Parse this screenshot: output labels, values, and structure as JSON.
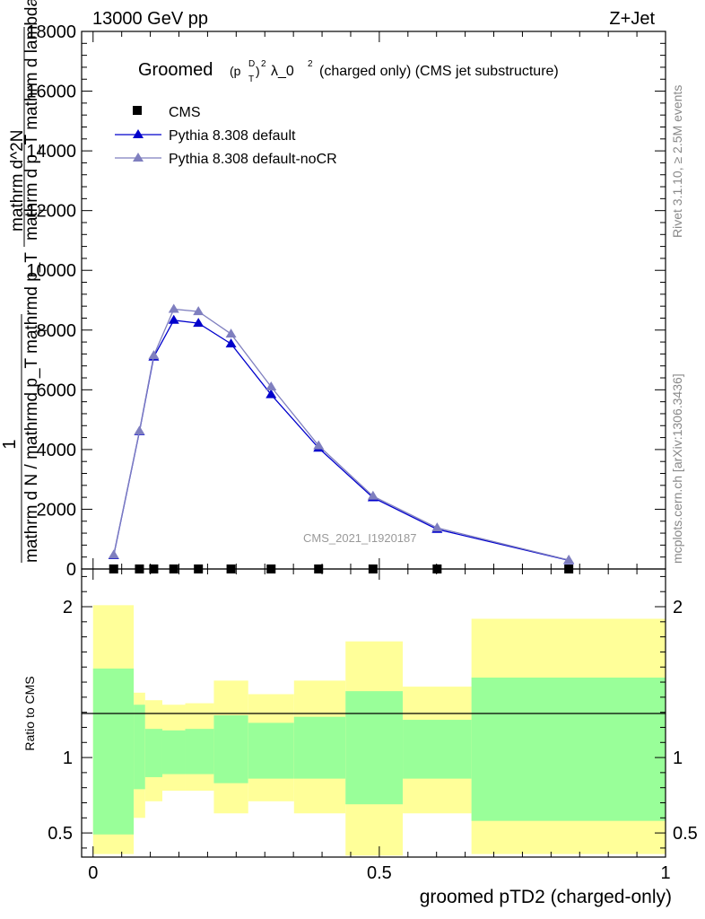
{
  "header": {
    "left": "13000 GeV pp",
    "right": "Z+Jet"
  },
  "side_text": {
    "rivet": "Rivet 3.1.10, ≥ 2.5M events",
    "site": "mcplots.cern.ch [arXiv:1306.3436]"
  },
  "chart_data": [
    {
      "type": "line",
      "title_parts": {
        "prefix": "Groomed",
        "p": "(p",
        "p_sup": "D",
        "p_sub": "T",
        "p_close": ")",
        "p_exp": "2",
        "lambda": "λ_0",
        "lambda_exp": "2",
        "suffix": "(charged only) (CMS jet substructure)"
      },
      "ylabel": {
        "fraction_numerator": "1",
        "fraction_denominator": "mathrm d N / mathrmd p_T mathrmd p_T",
        "derivative_numerator": "mathrm d^2N",
        "derivative_denominator": "mathrm d p_T mathrm d lambda",
        "sub_t1": "T",
        "sub_t2": "T"
      },
      "watermark": "CMS_2021_I1920187",
      "ylim": [
        0,
        18000
      ],
      "yticks": [
        0,
        2000,
        4000,
        6000,
        8000,
        10000,
        12000,
        14000,
        16000,
        18000
      ],
      "ytick_labels": [
        "0",
        "2000",
        "4000",
        "6000",
        "8000",
        "10000",
        "12000",
        "14000",
        "16000",
        "18000"
      ],
      "xlim": [
        -0.02,
        1.0
      ],
      "legend_position": "top-left",
      "legend": [
        {
          "label": "CMS",
          "marker": "square",
          "color": "#000000"
        },
        {
          "label": "Pythia 8.308 default",
          "marker": "triangle",
          "color": "#0000cc"
        },
        {
          "label": "Pythia 8.308 default-noCR",
          "marker": "triangle",
          "color": "#7f7fbf"
        }
      ],
      "x": [
        0.036,
        0.081,
        0.106,
        0.141,
        0.184,
        0.241,
        0.311,
        0.394,
        0.489,
        0.601,
        0.831
      ],
      "series": [
        {
          "name": "CMS",
          "color": "#000000",
          "values": [
            1,
            1,
            1,
            1,
            1,
            1,
            1,
            1,
            1,
            1,
            1
          ]
        },
        {
          "name": "Pythia 8.308 default",
          "color": "#0000cc",
          "values": [
            450,
            4600,
            7100,
            8330,
            8230,
            7540,
            5840,
            4050,
            2390,
            1330,
            290
          ]
        },
        {
          "name": "Pythia 8.308 default-noCR",
          "color": "#7f7fbf",
          "values": [
            470,
            4620,
            7150,
            8700,
            8620,
            7870,
            6100,
            4130,
            2440,
            1380,
            300
          ]
        }
      ]
    },
    {
      "type": "area",
      "ylabel": "Ratio to CMS",
      "xlabel": "groomed pTD2 (charged-only)",
      "xlim": [
        -0.02,
        1.0
      ],
      "ylim": [
        0.34,
        2.25
      ],
      "xticks": [
        0,
        0.5,
        1
      ],
      "xtick_labels": [
        "0",
        "0.5",
        "1"
      ],
      "yticks": [
        0.5,
        1,
        2
      ],
      "ytick_labels": [
        "0.5",
        "1",
        "2"
      ],
      "bin_edges": [
        0,
        0.071,
        0.091,
        0.121,
        0.161,
        0.211,
        0.271,
        0.351,
        0.441,
        0.541,
        0.661,
        1.0
      ],
      "band_inner_color": "#99ff99",
      "band_outer_color": "#ffff99",
      "band_inner_low": [
        0.49,
        0.79,
        0.87,
        0.89,
        0.89,
        0.83,
        0.86,
        0.86,
        0.69,
        0.86,
        0.58
      ],
      "band_inner_high": [
        1.59,
        1.35,
        1.19,
        1.18,
        1.19,
        1.28,
        1.23,
        1.27,
        1.44,
        1.25,
        1.53
      ],
      "band_outer_low": [
        0.36,
        0.6,
        0.71,
        0.78,
        0.78,
        0.63,
        0.71,
        0.63,
        0.35,
        0.63,
        0.36
      ],
      "band_outer_high": [
        2.01,
        1.43,
        1.38,
        1.35,
        1.36,
        1.51,
        1.42,
        1.51,
        1.77,
        1.47,
        1.92
      ]
    }
  ]
}
